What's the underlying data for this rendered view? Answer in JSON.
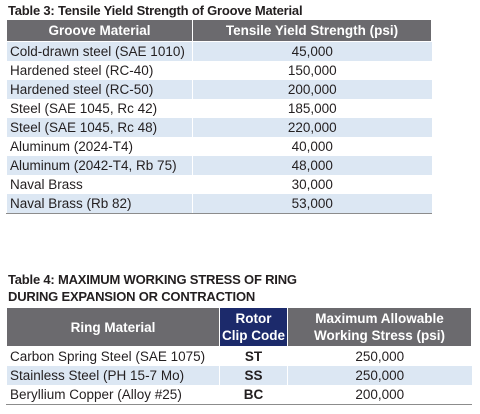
{
  "table3": {
    "title": "Table 3: Tensile Yield Strength of Groove Material",
    "headers": [
      "Groove Material",
      "Tensile Yield Strength (psi)"
    ],
    "rows": [
      {
        "material": "Cold-drawn steel (SAE 1010)",
        "value": "45,000"
      },
      {
        "material": "Hardened steel (RC-40)",
        "value": "150,000"
      },
      {
        "material": "Hardened steel (RC-50)",
        "value": "200,000"
      },
      {
        "material": "Steel (SAE 1045, Rc 42)",
        "value": "185,000"
      },
      {
        "material": "Steel (SAE 1045, Rc 48)",
        "value": "220,000"
      },
      {
        "material": "Aluminum (2024-T4)",
        "value": "40,000"
      },
      {
        "material": "Aluminum (2042-T4, Rb 75)",
        "value": "48,000"
      },
      {
        "material": "Naval Brass",
        "value": "30,000"
      },
      {
        "material": "Naval Brass (Rb 82)",
        "value": "53,000"
      }
    ]
  },
  "table4": {
    "title_line1": "Table 4: MAXIMUM WORKING STRESS OF RING",
    "title_line2": "DURING EXPANSION OR CONTRACTION",
    "headers": {
      "material": "Ring Material",
      "code_line1": "Rotor",
      "code_line2": "Clip Code",
      "stress_line1": "Maximum Allowable",
      "stress_line2": "Working Stress (psi)"
    },
    "rows": [
      {
        "material": "Carbon Spring Steel (SAE 1075)",
        "code": "ST",
        "value": "250,000"
      },
      {
        "material": "Stainless Steel (PH 15-7 Mo)",
        "code": "SS",
        "value": "250,000"
      },
      {
        "material": "Beryllium Copper (Alloy #25)",
        "code": "BC",
        "value": "200,000"
      }
    ]
  },
  "colors": {
    "header_gray": "#6b6a6e",
    "header_navy": "#1c2a6b",
    "row_tint": "#dce7f3",
    "text": "#231f20"
  }
}
